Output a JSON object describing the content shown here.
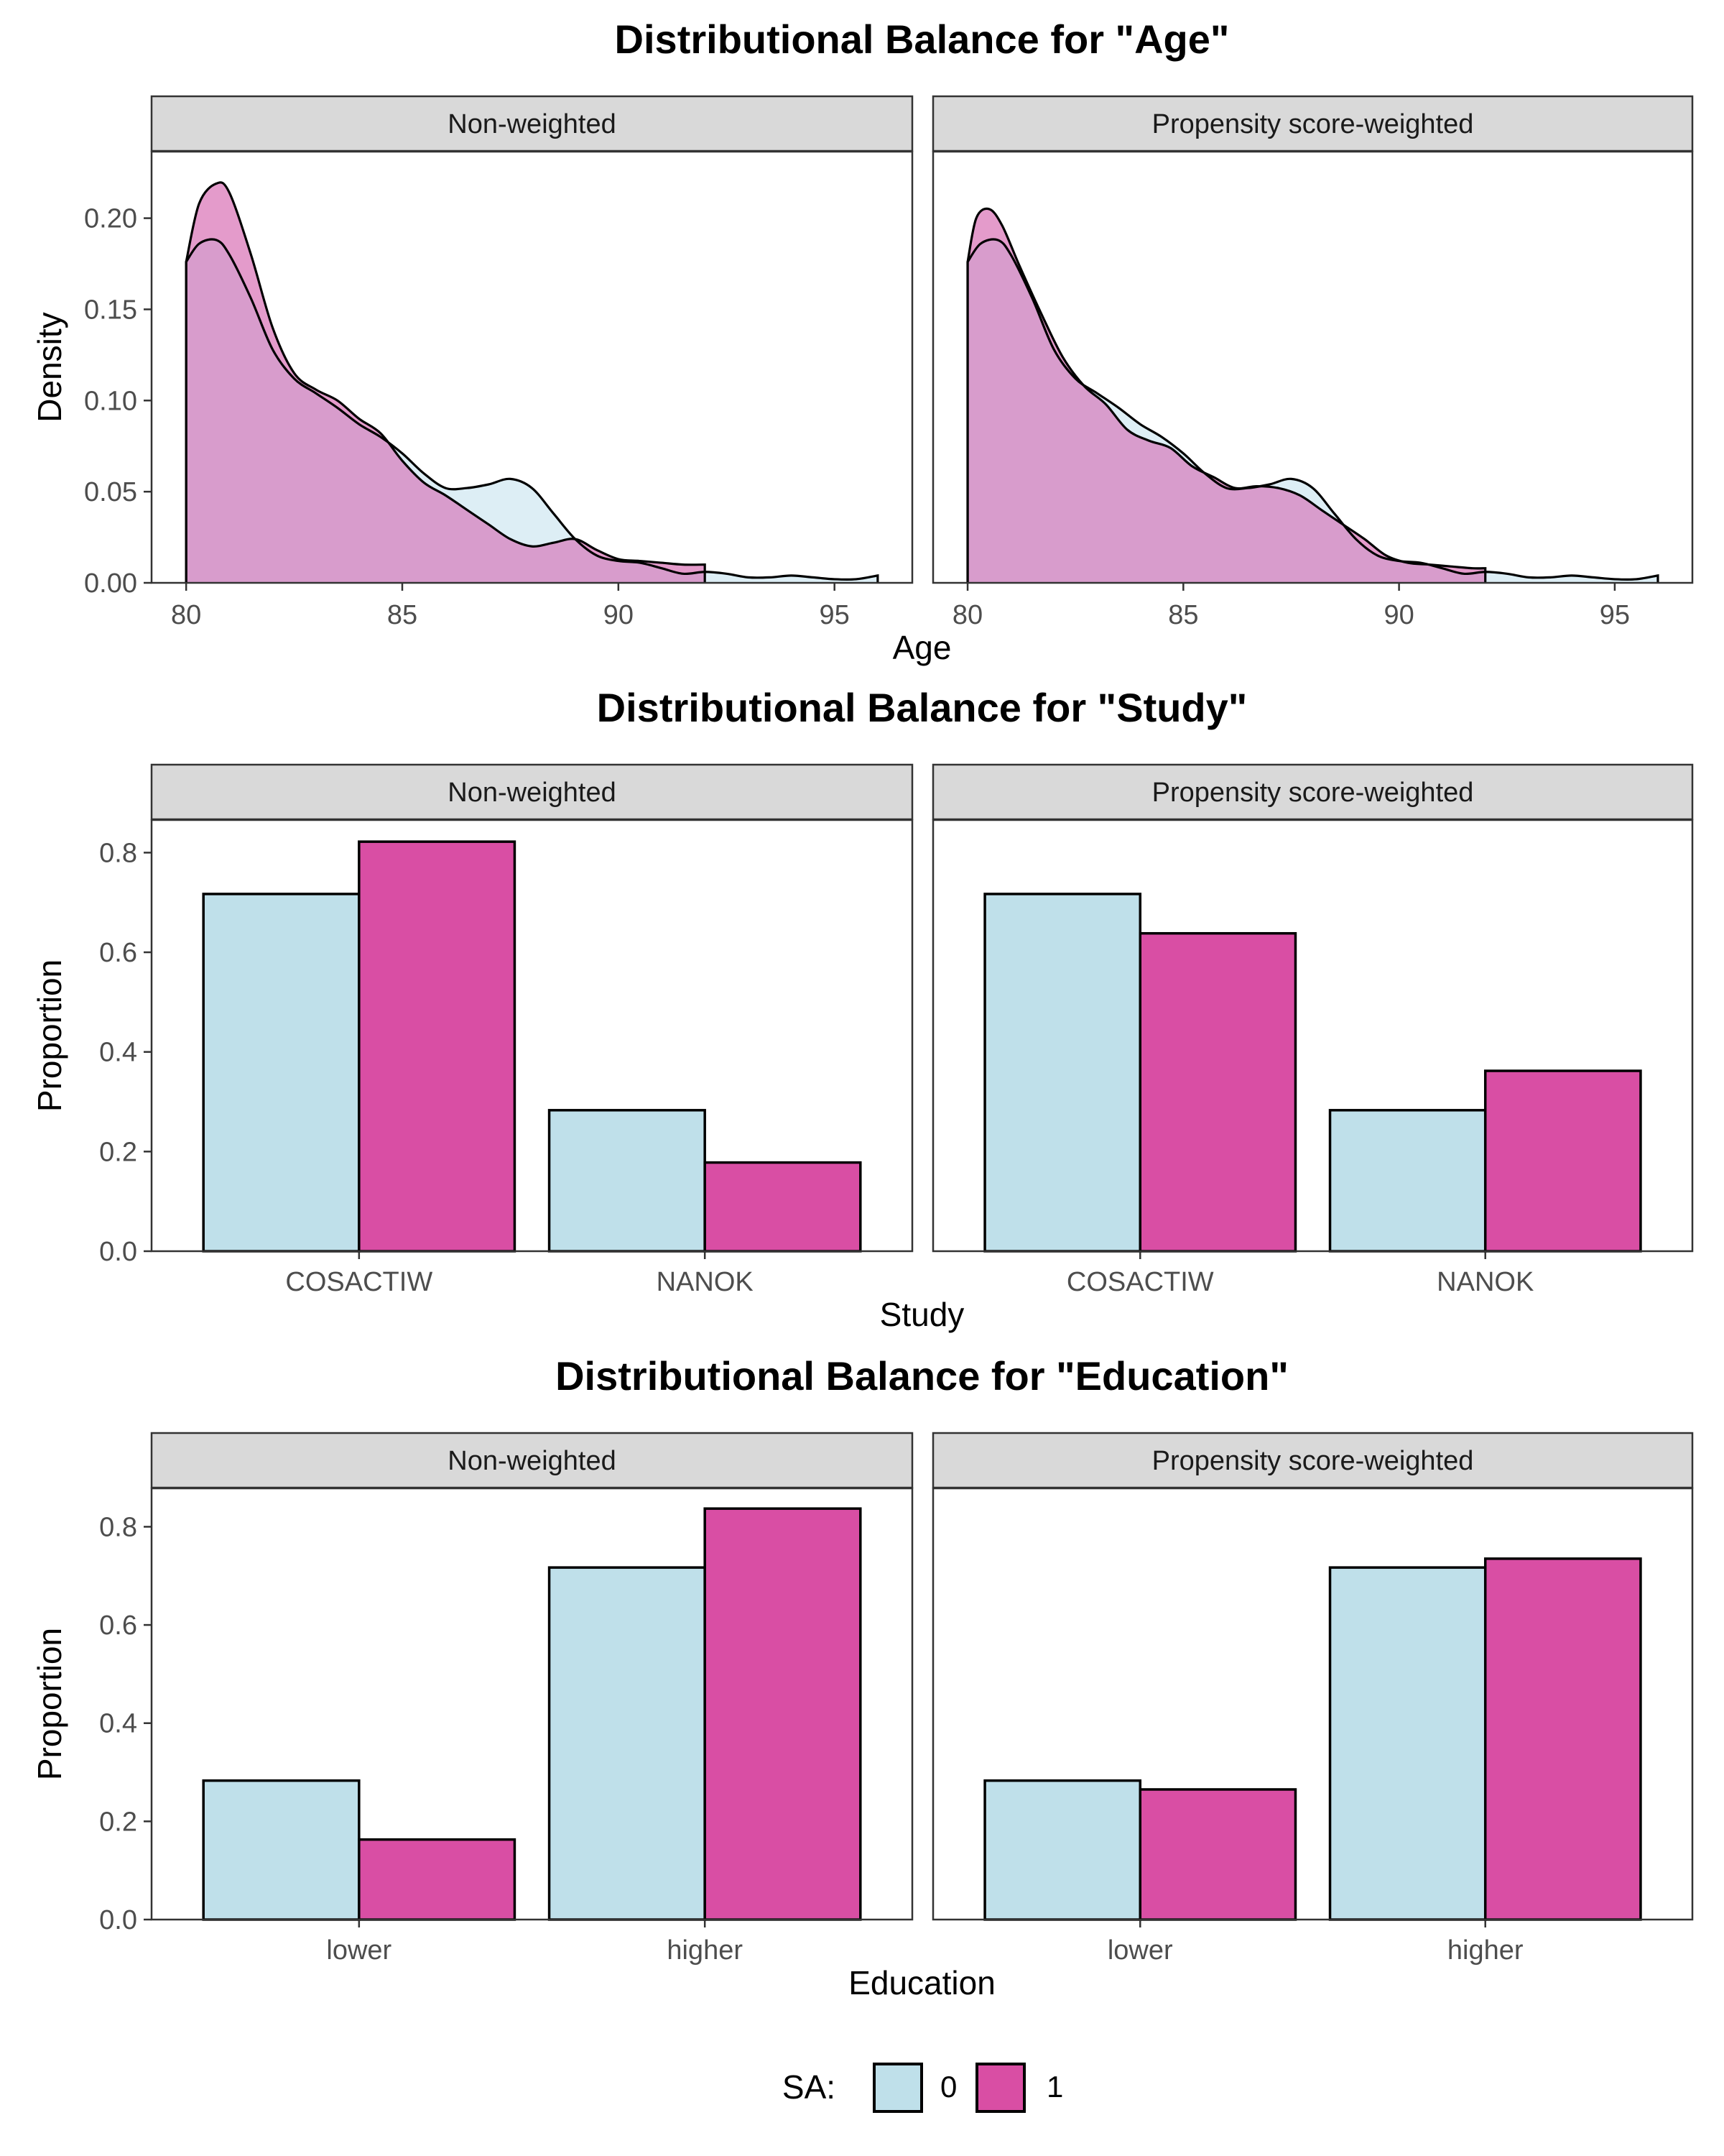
{
  "colors": {
    "sa0_fill": "#BFE0EA",
    "sa1_fill": "#D94EA4",
    "sa0_density_fill": "#DDEEF5",
    "sa1_density_fill": "#E49BCB",
    "overlap_fill": "#D89CCC",
    "strip_bg": "#D9D9D9"
  },
  "legend": {
    "title": "SA:",
    "items": [
      {
        "label": "0",
        "color": "#BFE0EA"
      },
      {
        "label": "1",
        "color": "#D94EA4"
      }
    ]
  },
  "chart_data": [
    {
      "type": "area",
      "title": "Distributional Balance for \"Age\"",
      "xlabel": "Age",
      "ylabel": "Density",
      "xlim": [
        79.2,
        96.8
      ],
      "ylim": [
        0,
        0.2365
      ],
      "xticks": [
        80,
        85,
        90,
        95
      ],
      "yticks": [
        0.0,
        0.05,
        0.1,
        0.15,
        0.2
      ],
      "ytick_labels": [
        "0.00",
        "0.05",
        "0.10",
        "0.15",
        "0.20"
      ],
      "panels": [
        {
          "label": "Non-weighted",
          "series": [
            {
              "name": "0",
              "x": [
                80,
                80.3,
                80.7,
                81,
                81.5,
                82,
                82.5,
                83,
                83.5,
                84,
                84.5,
                85,
                85.5,
                86,
                86.5,
                87,
                87.5,
                88,
                88.5,
                89,
                89.5,
                90,
                90.5,
                91,
                91.5,
                92,
                92.5,
                93,
                93.5,
                94,
                94.5,
                95,
                95.5,
                96
              ],
              "y": [
                0.176,
                0.186,
                0.188,
                0.18,
                0.156,
                0.128,
                0.112,
                0.104,
                0.096,
                0.087,
                0.08,
                0.071,
                0.06,
                0.052,
                0.052,
                0.054,
                0.057,
                0.052,
                0.038,
                0.024,
                0.015,
                0.012,
                0.011,
                0.008,
                0.005,
                0.006,
                0.005,
                0.003,
                0.003,
                0.004,
                0.003,
                0.002,
                0.002,
                0.004
              ]
            },
            {
              "name": "1",
              "x": [
                80,
                80.3,
                80.7,
                81,
                81.5,
                82,
                82.5,
                83,
                83.5,
                84,
                84.5,
                85,
                85.5,
                86,
                86.5,
                87,
                87.5,
                88,
                88.5,
                89,
                89.5,
                90,
                90.5,
                91,
                91.5,
                92
              ],
              "y": [
                0.176,
                0.208,
                0.219,
                0.214,
                0.18,
                0.14,
                0.115,
                0.106,
                0.1,
                0.09,
                0.082,
                0.067,
                0.055,
                0.048,
                0.04,
                0.032,
                0.024,
                0.02,
                0.022,
                0.024,
                0.018,
                0.013,
                0.012,
                0.011,
                0.01,
                0.01
              ]
            }
          ]
        },
        {
          "label": "Propensity score-weighted",
          "series": [
            {
              "name": "0",
              "x": [
                80,
                80.3,
                80.7,
                81,
                81.5,
                82,
                82.5,
                83,
                83.5,
                84,
                84.5,
                85,
                85.5,
                86,
                86.5,
                87,
                87.5,
                88,
                88.5,
                89,
                89.5,
                90,
                90.5,
                91,
                91.5,
                92,
                92.5,
                93,
                93.5,
                94,
                94.5,
                95,
                95.5,
                96
              ],
              "y": [
                0.176,
                0.186,
                0.188,
                0.18,
                0.156,
                0.128,
                0.112,
                0.104,
                0.096,
                0.087,
                0.08,
                0.071,
                0.06,
                0.052,
                0.052,
                0.054,
                0.057,
                0.052,
                0.038,
                0.024,
                0.015,
                0.012,
                0.011,
                0.008,
                0.005,
                0.006,
                0.005,
                0.003,
                0.003,
                0.004,
                0.003,
                0.002,
                0.002,
                0.004
              ]
            },
            {
              "name": "1",
              "x": [
                80,
                80.2,
                80.5,
                80.8,
                81.2,
                81.7,
                82.2,
                82.7,
                83.2,
                83.7,
                84.2,
                84.7,
                85.2,
                85.7,
                86.2,
                86.7,
                87.2,
                87.7,
                88.2,
                88.7,
                89.2,
                89.7,
                90.2,
                90.7,
                91.2,
                91.7,
                92
              ],
              "y": [
                0.176,
                0.2,
                0.205,
                0.196,
                0.174,
                0.148,
                0.124,
                0.108,
                0.098,
                0.084,
                0.078,
                0.074,
                0.064,
                0.058,
                0.052,
                0.053,
                0.052,
                0.048,
                0.04,
                0.032,
                0.024,
                0.015,
                0.011,
                0.01,
                0.009,
                0.008,
                0.008
              ]
            }
          ]
        }
      ]
    },
    {
      "type": "bar",
      "title": "Distributional Balance for \"Study\"",
      "xlabel": "Study",
      "ylabel": "Proportion",
      "categories": [
        "COSACTIW",
        "NANOK"
      ],
      "ylim": [
        0,
        0.8655
      ],
      "yticks": [
        0.0,
        0.2,
        0.4,
        0.6,
        0.8
      ],
      "ytick_labels": [
        "0.0",
        "0.2",
        "0.4",
        "0.6",
        "0.8"
      ],
      "panels": [
        {
          "label": "Non-weighted",
          "series": [
            {
              "name": "0",
              "values": [
                0.717,
                0.283
              ]
            },
            {
              "name": "1",
              "values": [
                0.822,
                0.178
              ]
            }
          ]
        },
        {
          "label": "Propensity score-weighted",
          "series": [
            {
              "name": "0",
              "values": [
                0.717,
                0.283
              ]
            },
            {
              "name": "1",
              "values": [
                0.638,
                0.362
              ]
            }
          ]
        }
      ]
    },
    {
      "type": "bar",
      "title": "Distributional Balance for \"Education\"",
      "xlabel": "Education",
      "ylabel": "Proportion",
      "categories": [
        "lower",
        "higher"
      ],
      "ylim": [
        0,
        0.8782
      ],
      "yticks": [
        0.0,
        0.2,
        0.4,
        0.6,
        0.8
      ],
      "ytick_labels": [
        "0.0",
        "0.2",
        "0.4",
        "0.6",
        "0.8"
      ],
      "panels": [
        {
          "label": "Non-weighted",
          "series": [
            {
              "name": "0",
              "values": [
                0.283,
                0.717
              ]
            },
            {
              "name": "1",
              "values": [
                0.163,
                0.837
              ]
            }
          ]
        },
        {
          "label": "Propensity score-weighted",
          "series": [
            {
              "name": "0",
              "values": [
                0.283,
                0.717
              ]
            },
            {
              "name": "1",
              "values": [
                0.265,
                0.735
              ]
            }
          ]
        }
      ]
    }
  ]
}
